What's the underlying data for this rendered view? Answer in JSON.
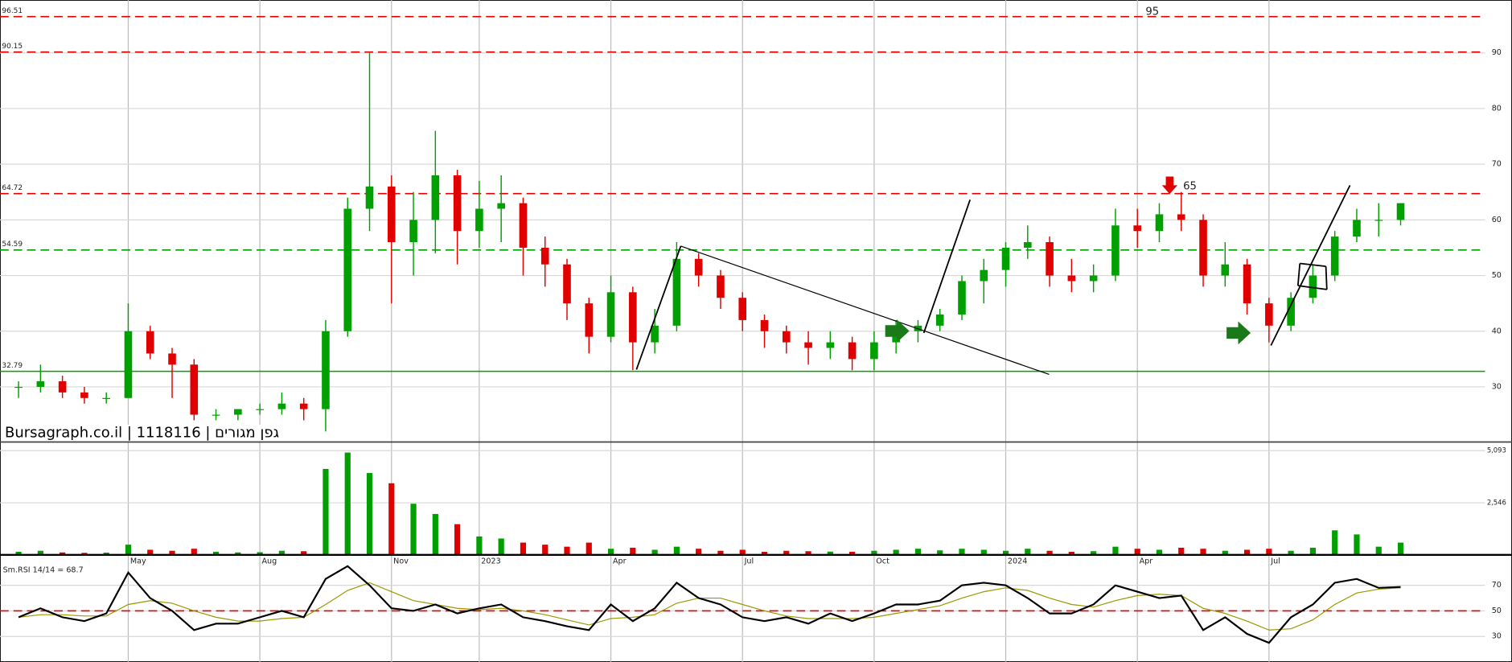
{
  "chart_data": [
    {
      "type": "candlestick",
      "watermark": "Bursagraph.co.il | 1118116 | גפן מגורים",
      "annotations": [
        "95",
        "65"
      ],
      "categories": [
        null,
        null,
        null,
        null,
        null,
        "May",
        null,
        null,
        null,
        null,
        null,
        "Aug",
        null,
        null,
        null,
        null,
        null,
        "Nov",
        null,
        null,
        null,
        "2023",
        null,
        null,
        null,
        null,
        null,
        "Apr",
        null,
        null,
        null,
        null,
        null,
        "Jul",
        null,
        null,
        null,
        null,
        null,
        "Oct",
        null,
        null,
        null,
        null,
        null,
        "2024",
        null,
        null,
        null,
        null,
        null,
        "Apr",
        null,
        null,
        null,
        null,
        null,
        "Jul",
        null,
        null,
        null,
        null,
        null,
        null
      ],
      "open": [
        30,
        30,
        31,
        29,
        28,
        28,
        40,
        36,
        34,
        25,
        25,
        26,
        26,
        27,
        26,
        40,
        62,
        66,
        56,
        60,
        68,
        58,
        62,
        63,
        55,
        52,
        45,
        39,
        47,
        38,
        41,
        53,
        50,
        46,
        42,
        40,
        38,
        37,
        38,
        35,
        38,
        40,
        41,
        43,
        49,
        51,
        55,
        56,
        50,
        49,
        50,
        59,
        58,
        61,
        60,
        50,
        52,
        45,
        41,
        46,
        50,
        57,
        60,
        60
      ],
      "high": [
        31,
        34,
        32,
        30,
        29,
        45,
        41,
        37,
        35,
        26,
        26,
        27,
        29,
        28,
        42,
        64,
        90,
        68,
        65,
        76,
        69,
        67,
        68,
        64,
        57,
        53,
        46,
        50,
        48,
        44,
        56,
        54,
        51,
        47,
        43,
        41,
        40,
        40,
        39,
        40,
        42,
        42,
        44,
        50,
        53,
        56,
        59,
        57,
        53,
        52,
        62,
        62,
        63,
        65,
        61,
        56,
        53,
        46,
        47,
        52,
        58,
        62,
        63,
        63
      ],
      "low": [
        28,
        29,
        28,
        27,
        27,
        28,
        35,
        28,
        24,
        24,
        24,
        25,
        25,
        24,
        22,
        39,
        58,
        45,
        50,
        54,
        52,
        55,
        56,
        50,
        48,
        42,
        36,
        38,
        33,
        36,
        40,
        48,
        44,
        40,
        37,
        36,
        34,
        35,
        33,
        33,
        36,
        38,
        40,
        42,
        45,
        48,
        53,
        48,
        47,
        47,
        49,
        55,
        56,
        58,
        48,
        48,
        43,
        38,
        40,
        45,
        49,
        56,
        57,
        59
      ],
      "close": [
        30,
        31,
        29,
        28,
        28,
        40,
        36,
        34,
        25,
        25,
        26,
        26,
        27,
        26,
        40,
        62,
        66,
        56,
        60,
        68,
        58,
        62,
        63,
        55,
        52,
        45,
        39,
        47,
        38,
        41,
        53,
        50,
        46,
        42,
        40,
        38,
        37,
        38,
        35,
        38,
        40,
        41,
        43,
        49,
        51,
        55,
        56,
        50,
        49,
        50,
        59,
        58,
        61,
        60,
        50,
        52,
        45,
        41,
        46,
        50,
        57,
        60,
        60,
        63
      ],
      "up_color": "#00a000",
      "down_color": "#e00000",
      "hlines": [
        {
          "value": 96.51,
          "color": "#e00000",
          "dashed": true
        },
        {
          "value": 90.15,
          "color": "#e00000",
          "dashed": true
        },
        {
          "value": 64.72,
          "color": "#e00000",
          "dashed": true
        },
        {
          "value": 54.59,
          "color": "#00a000",
          "dashed": true
        },
        {
          "value": 32.79,
          "color": "#00a000",
          "dashed": false
        }
      ],
      "ylim": [
        20.1,
        99.5
      ],
      "yticks": [
        30,
        40,
        50,
        60,
        70,
        80,
        90
      ],
      "grid": true
    },
    {
      "type": "bar",
      "values": [
        150,
        200,
        120,
        100,
        110,
        500,
        250,
        200,
        300,
        150,
        120,
        130,
        200,
        180,
        4200,
        5000,
        4000,
        3500,
        2500,
        2000,
        1500,
        900,
        800,
        600,
        500,
        400,
        600,
        300,
        350,
        250,
        400,
        300,
        200,
        250,
        150,
        200,
        180,
        160,
        150,
        200,
        250,
        300,
        220,
        300,
        250,
        200,
        300,
        200,
        150,
        180,
        400,
        300,
        250,
        350,
        300,
        200,
        250,
        300,
        200,
        350,
        1200,
        1000,
        400,
        600
      ],
      "up_color": "#00a000",
      "down_color": "#e00000",
      "ylim": [
        0,
        5517
      ],
      "yticks": [
        {
          "value": 5093,
          "label": "5,093"
        },
        {
          "value": 2546,
          "label": "2,546"
        }
      ]
    },
    {
      "type": "line",
      "title": "Sm.RSI 14/14 = 68.7",
      "series": [
        {
          "color": "#000000",
          "values": [
            45,
            52,
            45,
            42,
            48,
            80,
            60,
            50,
            35,
            40,
            40,
            45,
            50,
            45,
            75,
            85,
            70,
            52,
            50,
            55,
            48,
            52,
            55,
            45,
            42,
            38,
            35,
            55,
            42,
            52,
            72,
            60,
            55,
            45,
            42,
            45,
            40,
            48,
            42,
            48,
            55,
            55,
            58,
            70,
            72,
            70,
            60,
            48,
            48,
            55,
            70,
            65,
            60,
            62,
            35,
            45,
            32,
            25,
            45,
            55,
            72,
            75,
            68,
            68.7
          ]
        },
        {
          "color": "#999900",
          "values": [
            45,
            47,
            47,
            46,
            46,
            55,
            58,
            56,
            50,
            45,
            42,
            42,
            44,
            45,
            55,
            66,
            72,
            65,
            58,
            55,
            52,
            51,
            52,
            50,
            47,
            43,
            39,
            44,
            45,
            47,
            56,
            60,
            60,
            55,
            50,
            46,
            44,
            44,
            44,
            45,
            48,
            51,
            54,
            60,
            65,
            68,
            66,
            60,
            55,
            53,
            58,
            62,
            63,
            62,
            52,
            48,
            42,
            35,
            36,
            43,
            55,
            64,
            67,
            68
          ]
        }
      ],
      "hline": {
        "value": 50,
        "color": "#e00000"
      },
      "ylim": [
        10,
        93.8
      ],
      "yticks": [
        30,
        50,
        70
      ]
    }
  ]
}
